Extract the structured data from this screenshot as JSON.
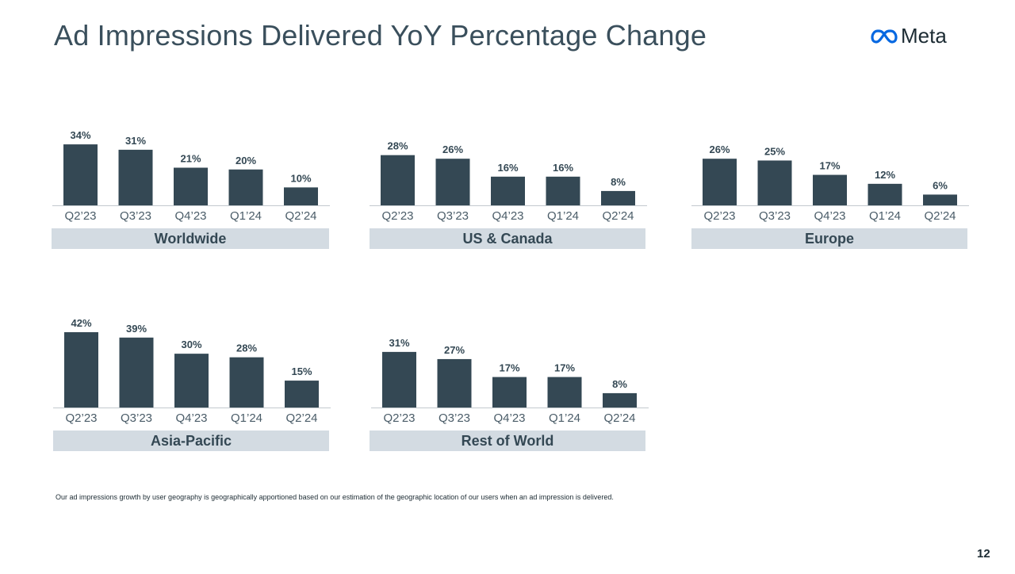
{
  "header": {
    "title": "Ad Impressions Delivered YoY Percentage Change",
    "brand": "Meta"
  },
  "colors": {
    "bar": "#344854",
    "label_bg": "#d3dbe2",
    "brand_blue": "#0668e1"
  },
  "chart_data": [
    {
      "type": "bar",
      "title": "Worldwide",
      "categories": [
        "Q2’23",
        "Q3’23",
        "Q4’23",
        "Q1’24",
        "Q2’24"
      ],
      "values": [
        34,
        31,
        21,
        20,
        10
      ],
      "data_labels": [
        "34%",
        "31%",
        "21%",
        "20%",
        "10%"
      ],
      "ylim": [
        0,
        42
      ]
    },
    {
      "type": "bar",
      "title": "US & Canada",
      "categories": [
        "Q2’23",
        "Q3’23",
        "Q4’23",
        "Q1’24",
        "Q2’24"
      ],
      "values": [
        28,
        26,
        16,
        16,
        8
      ],
      "data_labels": [
        "28%",
        "26%",
        "16%",
        "16%",
        "8%"
      ],
      "ylim": [
        0,
        42
      ]
    },
    {
      "type": "bar",
      "title": "Europe",
      "categories": [
        "Q2’23",
        "Q3’23",
        "Q4’23",
        "Q1’24",
        "Q2’24"
      ],
      "values": [
        26,
        25,
        17,
        12,
        6
      ],
      "data_labels": [
        "26%",
        "25%",
        "17%",
        "12%",
        "6%"
      ],
      "ylim": [
        0,
        42
      ]
    },
    {
      "type": "bar",
      "title": "Asia-Pacific",
      "categories": [
        "Q2’23",
        "Q3’23",
        "Q4’23",
        "Q1’24",
        "Q2’24"
      ],
      "values": [
        42,
        39,
        30,
        28,
        15
      ],
      "data_labels": [
        "42%",
        "39%",
        "30%",
        "28%",
        "15%"
      ],
      "ylim": [
        0,
        42
      ]
    },
    {
      "type": "bar",
      "title": "Rest of World",
      "categories": [
        "Q2’23",
        "Q3’23",
        "Q4’23",
        "Q1’24",
        "Q2’24"
      ],
      "values": [
        31,
        27,
        17,
        17,
        8
      ],
      "data_labels": [
        "31%",
        "27%",
        "17%",
        "17%",
        "8%"
      ],
      "ylim": [
        0,
        42
      ]
    }
  ],
  "footnote": "Our ad impressions growth by user geography is geographically apportioned based on our estimation of the geographic location of our users when an ad impression is delivered.",
  "page_number": "12"
}
